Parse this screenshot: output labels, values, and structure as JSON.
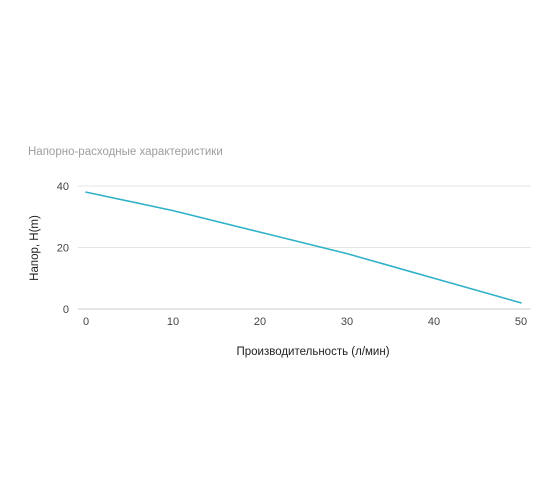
{
  "chart_data": {
    "type": "line",
    "title": "Напорно-расходные характеристики",
    "xlabel": "Производительность (л/мин)",
    "ylabel": "Напор, H(m)",
    "x": [
      0,
      10,
      20,
      30,
      40,
      50
    ],
    "series": [
      {
        "values": [
          38,
          32,
          25,
          18,
          10,
          2
        ],
        "color": "#2fb1c8"
      }
    ],
    "xlim": [
      0,
      50
    ],
    "ylim": [
      0,
      40
    ],
    "xticks": [
      "0",
      "10",
      "20",
      "30",
      "40",
      "50"
    ],
    "yticks": [
      "0",
      "20",
      "40"
    ],
    "grid": true,
    "legend": "none"
  }
}
